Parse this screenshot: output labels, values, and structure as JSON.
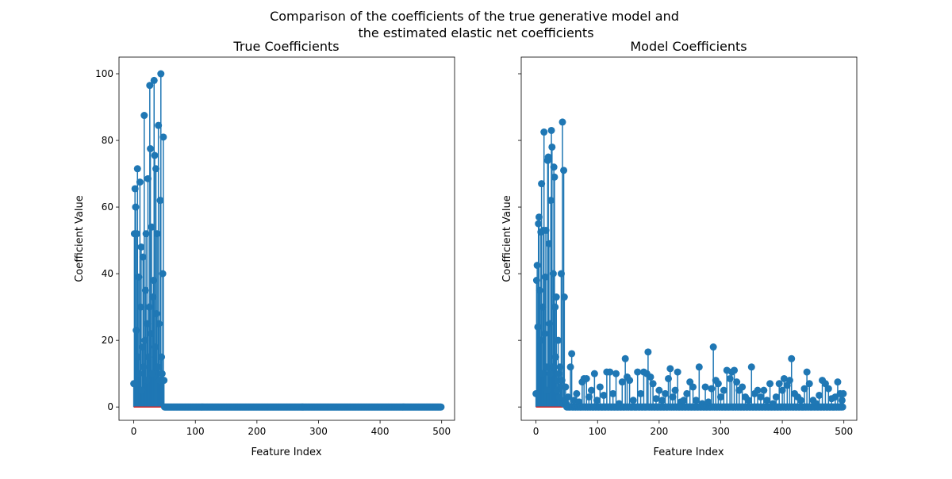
{
  "figure": {
    "suptitle_line1": "Comparison of the coefficients of the true generative model and",
    "suptitle_line2": "the estimated elastic net coefficients"
  },
  "colors": {
    "stem": "#1f77b4",
    "baseline": "#d62728"
  },
  "chart_data": [
    {
      "type": "stem",
      "title": "True Coefficients",
      "xlabel": "Feature Index",
      "ylabel": "Coefficient Value",
      "xlim": [
        -24,
        521
      ],
      "ylim": [
        -4,
        105
      ],
      "xticks": [
        0,
        100,
        200,
        300,
        400,
        500
      ],
      "yticks": [
        0,
        20,
        40,
        60,
        80,
        100
      ],
      "show_ytick_labels": true,
      "n_points": 500,
      "default_value": 0,
      "nonzero_start_index": 0,
      "nonzero_values": [
        7,
        52,
        65.5,
        60,
        23,
        52,
        71.5,
        15,
        39,
        10,
        67.5,
        30,
        48,
        5,
        18,
        45,
        12,
        87.5,
        20,
        35,
        52,
        8,
        25,
        68.5,
        15,
        30,
        96.5,
        77.5,
        22,
        54,
        10,
        33,
        38,
        98,
        75.5,
        18,
        71.5,
        28,
        52,
        12,
        84.5,
        25,
        8,
        62,
        100,
        15,
        10,
        40,
        81,
        8
      ],
      "grid": false
    },
    {
      "type": "stem",
      "title": "Model Coefficients",
      "xlabel": "Feature Index",
      "ylabel": "Coefficient Value",
      "xlim": [
        -24,
        521
      ],
      "ylim": [
        -4,
        105
      ],
      "xticks": [
        0,
        100,
        200,
        300,
        400,
        500
      ],
      "yticks": [
        0,
        20,
        40,
        60,
        80,
        100
      ],
      "show_ytick_labels": false,
      "n_points": 500,
      "default_value": 0,
      "nonzero_start_index": 0,
      "nonzero_values": [
        4,
        38,
        42.5,
        24,
        55,
        57,
        35,
        20,
        52.5,
        67,
        10,
        30,
        53,
        82.5,
        22,
        39,
        53,
        12,
        5,
        74,
        75,
        49,
        25,
        10,
        62,
        83,
        78,
        12,
        40,
        72,
        69,
        30,
        15,
        33,
        5,
        8,
        20,
        10,
        3,
        12,
        6,
        40,
        8,
        85.5,
        1,
        71,
        33,
        2,
        6,
        1
      ],
      "sparse_points": [
        [
          52,
          3
        ],
        [
          56,
          12
        ],
        [
          58,
          16
        ],
        [
          62,
          2
        ],
        [
          66,
          4
        ],
        [
          70,
          1.5
        ],
        [
          75,
          7.5
        ],
        [
          78,
          8.5
        ],
        [
          82,
          8.5
        ],
        [
          86,
          3
        ],
        [
          90,
          5
        ],
        [
          95,
          10
        ],
        [
          99,
          2
        ],
        [
          104,
          6
        ],
        [
          110,
          3.5
        ],
        [
          115,
          10.5
        ],
        [
          120,
          10.5
        ],
        [
          125,
          4
        ],
        [
          130,
          10
        ],
        [
          135,
          1
        ],
        [
          140,
          7.5
        ],
        [
          145,
          14.5
        ],
        [
          148,
          9
        ],
        [
          152,
          8
        ],
        [
          158,
          2
        ],
        [
          165,
          10.5
        ],
        [
          170,
          4
        ],
        [
          175,
          10.5
        ],
        [
          180,
          10
        ],
        [
          182,
          16.5
        ],
        [
          186,
          9
        ],
        [
          190,
          7
        ],
        [
          195,
          2.5
        ],
        [
          200,
          5
        ],
        [
          205,
          2
        ],
        [
          210,
          4
        ],
        [
          215,
          8.5
        ],
        [
          218,
          11.5
        ],
        [
          222,
          3
        ],
        [
          226,
          5
        ],
        [
          230,
          10.5
        ],
        [
          235,
          1.5
        ],
        [
          240,
          2
        ],
        [
          245,
          4
        ],
        [
          250,
          7.5
        ],
        [
          255,
          6
        ],
        [
          260,
          2
        ],
        [
          265,
          12
        ],
        [
          270,
          1
        ],
        [
          275,
          6
        ],
        [
          280,
          1.5
        ],
        [
          285,
          5.5
        ],
        [
          288,
          18
        ],
        [
          292,
          8
        ],
        [
          296,
          7
        ],
        [
          300,
          3
        ],
        [
          305,
          5
        ],
        [
          310,
          11
        ],
        [
          315,
          8.5
        ],
        [
          318,
          10.5
        ],
        [
          322,
          11
        ],
        [
          326,
          7.5
        ],
        [
          330,
          5
        ],
        [
          335,
          6
        ],
        [
          340,
          3
        ],
        [
          345,
          2
        ],
        [
          350,
          12
        ],
        [
          355,
          4
        ],
        [
          360,
          5
        ],
        [
          365,
          3
        ],
        [
          370,
          5
        ],
        [
          375,
          2
        ],
        [
          380,
          7
        ],
        [
          385,
          1
        ],
        [
          390,
          3
        ],
        [
          395,
          7
        ],
        [
          400,
          5
        ],
        [
          403,
          8.5
        ],
        [
          408,
          6.5
        ],
        [
          412,
          8
        ],
        [
          415,
          14.5
        ],
        [
          420,
          4
        ],
        [
          425,
          3
        ],
        [
          430,
          2
        ],
        [
          436,
          5.5
        ],
        [
          440,
          10.5
        ],
        [
          444,
          7
        ],
        [
          450,
          2
        ],
        [
          455,
          1
        ],
        [
          460,
          3.5
        ],
        [
          465,
          8
        ],
        [
          470,
          7
        ],
        [
          475,
          5.5
        ],
        [
          480,
          2.5
        ],
        [
          486,
          3
        ],
        [
          490,
          7.5
        ],
        [
          494,
          4
        ],
        [
          497,
          2
        ],
        [
          499,
          4
        ]
      ],
      "grid": false
    }
  ]
}
